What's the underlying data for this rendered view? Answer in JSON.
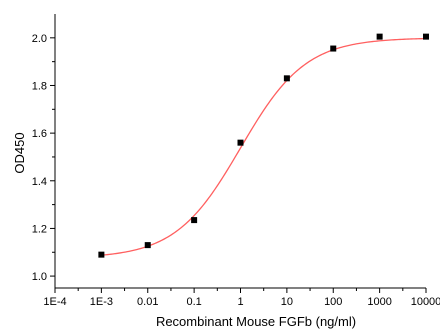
{
  "chart_data": {
    "type": "scatter",
    "title": "",
    "xlabel": "Recombinant Mouse FGFb (ng/ml)",
    "ylabel": "OD450",
    "x_scale": "log",
    "xlim": [
      0.0001,
      10000
    ],
    "ylim": [
      0.95,
      2.1
    ],
    "x_tick_values": [
      0.0001,
      0.001,
      0.01,
      0.1,
      1,
      10,
      100,
      1000,
      10000
    ],
    "x_tick_labels": [
      "1E-4",
      "1E-3",
      "0.01",
      "0.1",
      "1",
      "10",
      "100",
      "1000",
      "10000"
    ],
    "y_tick_values": [
      1.0,
      1.2,
      1.4,
      1.6,
      1.8,
      2.0
    ],
    "y_tick_labels": [
      "1.0",
      "1.2",
      "1.4",
      "1.6",
      "1.8",
      "2.0"
    ],
    "grid": false,
    "legend": "none",
    "series": [
      {
        "type": "scatter",
        "color": "#000000",
        "marker": "square",
        "x": [
          0.001,
          0.01,
          0.1,
          1,
          10,
          100,
          1000,
          10000
        ],
        "y": [
          1.09,
          1.13,
          1.235,
          1.56,
          1.83,
          1.955,
          2.005,
          2.005
        ]
      },
      {
        "type": "line",
        "color": "#ff6060",
        "fit": "four-parameter logistic",
        "params": {
          "bottom": 1.075,
          "top": 2.0,
          "ec50": 1.0,
          "hill": 0.62
        }
      }
    ]
  }
}
